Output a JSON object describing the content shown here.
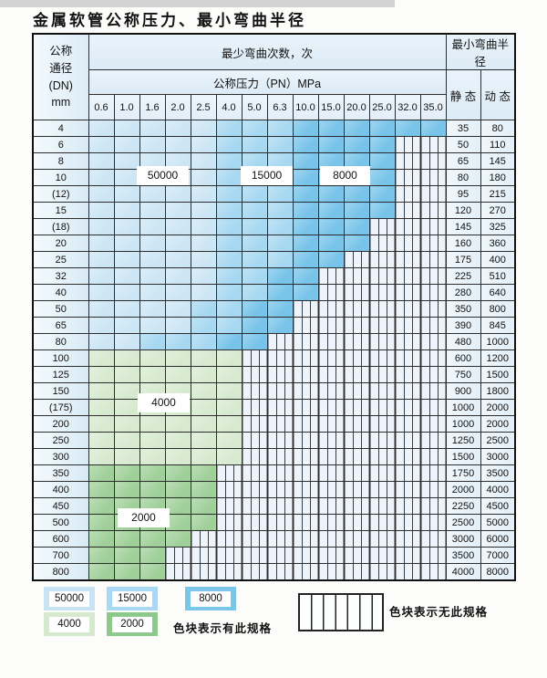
{
  "title": "金属软管公称压力、最小弯曲半径",
  "table": {
    "header": {
      "dn_lines": [
        "公称",
        "通径",
        "(DN)",
        "mm"
      ],
      "bend_times": "最少弯曲次数，次",
      "pressure": "公称压力（PN）MPa",
      "radius": "最小弯曲半径",
      "static": "静 态",
      "dynamic": "动 态",
      "pressures": [
        "0.6",
        "1.0",
        "1.6",
        "2.0",
        "2.5",
        "4.0",
        "5.0",
        "6.3",
        "10.0",
        "15.0",
        "20.0",
        "25.0",
        "32.0",
        "35.0"
      ]
    },
    "zones": {
      "L": {
        "category": "50000",
        "color": "#cde6f5"
      },
      "M": {
        "category": "15000",
        "color": "#a7d8f1"
      },
      "D": {
        "category": "8000",
        "color": "#77c3e9"
      },
      "G4": {
        "category": "4000",
        "color": "#d7ead0"
      },
      "G2": {
        "category": "2000",
        "color": "#a0d09a"
      },
      "N": {
        "category": "无此规格"
      }
    },
    "rows": [
      {
        "dn": "4",
        "cells": [
          "L",
          "L",
          "L",
          "L",
          "L",
          "M",
          "M",
          "M",
          "D",
          "D",
          "D",
          "D",
          "D",
          "D"
        ],
        "static": "35",
        "dynamic": "80"
      },
      {
        "dn": "6",
        "cells": [
          "L",
          "L",
          "L",
          "L",
          "L",
          "M",
          "M",
          "M",
          "D",
          "D",
          "D",
          "D",
          "N",
          "N"
        ],
        "static": "50",
        "dynamic": "110"
      },
      {
        "dn": "8",
        "cells": [
          "L",
          "L",
          "L",
          "L",
          "L",
          "M",
          "M",
          "M",
          "D",
          "D",
          "D",
          "D",
          "N",
          "N"
        ],
        "static": "65",
        "dynamic": "145"
      },
      {
        "dn": "10",
        "cells": [
          "L",
          "L",
          "L",
          "L",
          "L",
          "M",
          "M",
          "M",
          "D",
          "D",
          "D",
          "D",
          "N",
          "N"
        ],
        "static": "80",
        "dynamic": "180"
      },
      {
        "dn": "(12)",
        "cells": [
          "L",
          "L",
          "L",
          "L",
          "L",
          "M",
          "M",
          "M",
          "D",
          "D",
          "D",
          "D",
          "N",
          "N"
        ],
        "static": "95",
        "dynamic": "215"
      },
      {
        "dn": "15",
        "cells": [
          "L",
          "L",
          "L",
          "L",
          "L",
          "M",
          "M",
          "M",
          "D",
          "D",
          "D",
          "D",
          "N",
          "N"
        ],
        "static": "120",
        "dynamic": "270"
      },
      {
        "dn": "(18)",
        "cells": [
          "L",
          "L",
          "L",
          "L",
          "L",
          "M",
          "M",
          "M",
          "D",
          "D",
          "D",
          "N",
          "N",
          "N"
        ],
        "static": "145",
        "dynamic": "325"
      },
      {
        "dn": "20",
        "cells": [
          "L",
          "L",
          "L",
          "L",
          "L",
          "M",
          "M",
          "M",
          "D",
          "D",
          "D",
          "N",
          "N",
          "N"
        ],
        "static": "160",
        "dynamic": "360"
      },
      {
        "dn": "25",
        "cells": [
          "L",
          "L",
          "L",
          "L",
          "L",
          "M",
          "M",
          "M",
          "D",
          "D",
          "N",
          "N",
          "N",
          "N"
        ],
        "static": "175",
        "dynamic": "400"
      },
      {
        "dn": "32",
        "cells": [
          "L",
          "L",
          "L",
          "L",
          "L",
          "M",
          "M",
          "D",
          "D",
          "N",
          "N",
          "N",
          "N",
          "N"
        ],
        "static": "225",
        "dynamic": "510"
      },
      {
        "dn": "40",
        "cells": [
          "L",
          "L",
          "L",
          "L",
          "L",
          "M",
          "M",
          "D",
          "D",
          "N",
          "N",
          "N",
          "N",
          "N"
        ],
        "static": "280",
        "dynamic": "640"
      },
      {
        "dn": "50",
        "cells": [
          "L",
          "L",
          "L",
          "L",
          "M",
          "M",
          "D",
          "D",
          "N",
          "N",
          "N",
          "N",
          "N",
          "N"
        ],
        "static": "350",
        "dynamic": "800"
      },
      {
        "dn": "65",
        "cells": [
          "L",
          "L",
          "L",
          "L",
          "M",
          "M",
          "D",
          "D",
          "N",
          "N",
          "N",
          "N",
          "N",
          "N"
        ],
        "static": "390",
        "dynamic": "845"
      },
      {
        "dn": "80",
        "cells": [
          "L",
          "L",
          "M",
          "M",
          "M",
          "D",
          "D",
          "N",
          "N",
          "N",
          "N",
          "N",
          "N",
          "N"
        ],
        "static": "480",
        "dynamic": "1000"
      },
      {
        "dn": "100",
        "cells": [
          "G4",
          "G4",
          "G4",
          "G4",
          "G4",
          "G4",
          "N",
          "N",
          "N",
          "N",
          "N",
          "N",
          "N",
          "N"
        ],
        "static": "600",
        "dynamic": "1200"
      },
      {
        "dn": "125",
        "cells": [
          "G4",
          "G4",
          "G4",
          "G4",
          "G4",
          "G4",
          "N",
          "N",
          "N",
          "N",
          "N",
          "N",
          "N",
          "N"
        ],
        "static": "750",
        "dynamic": "1500"
      },
      {
        "dn": "150",
        "cells": [
          "G4",
          "G4",
          "G4",
          "G4",
          "G4",
          "G4",
          "N",
          "N",
          "N",
          "N",
          "N",
          "N",
          "N",
          "N"
        ],
        "static": "900",
        "dynamic": "1800"
      },
      {
        "dn": "(175)",
        "cells": [
          "G4",
          "G4",
          "G4",
          "G4",
          "G4",
          "G4",
          "N",
          "N",
          "N",
          "N",
          "N",
          "N",
          "N",
          "N"
        ],
        "static": "1000",
        "dynamic": "2000"
      },
      {
        "dn": "200",
        "cells": [
          "G4",
          "G4",
          "G4",
          "G4",
          "G4",
          "G4",
          "N",
          "N",
          "N",
          "N",
          "N",
          "N",
          "N",
          "N"
        ],
        "static": "1000",
        "dynamic": "2000"
      },
      {
        "dn": "250",
        "cells": [
          "G4",
          "G4",
          "G4",
          "G4",
          "G4",
          "G4",
          "N",
          "N",
          "N",
          "N",
          "N",
          "N",
          "N",
          "N"
        ],
        "static": "1250",
        "dynamic": "2500"
      },
      {
        "dn": "300",
        "cells": [
          "G4",
          "G4",
          "G4",
          "G4",
          "G4",
          "G4",
          "N",
          "N",
          "N",
          "N",
          "N",
          "N",
          "N",
          "N"
        ],
        "static": "1500",
        "dynamic": "3000"
      },
      {
        "dn": "350",
        "cells": [
          "G2",
          "G2",
          "G2",
          "G2",
          "G2",
          "N",
          "N",
          "N",
          "N",
          "N",
          "N",
          "N",
          "N",
          "N"
        ],
        "static": "1750",
        "dynamic": "3500"
      },
      {
        "dn": "400",
        "cells": [
          "G2",
          "G2",
          "G2",
          "G2",
          "G2",
          "N",
          "N",
          "N",
          "N",
          "N",
          "N",
          "N",
          "N",
          "N"
        ],
        "static": "2000",
        "dynamic": "4000"
      },
      {
        "dn": "450",
        "cells": [
          "G2",
          "G2",
          "G2",
          "G2",
          "G2",
          "N",
          "N",
          "N",
          "N",
          "N",
          "N",
          "N",
          "N",
          "N"
        ],
        "static": "2250",
        "dynamic": "4500"
      },
      {
        "dn": "500",
        "cells": [
          "G2",
          "G2",
          "G2",
          "G2",
          "G2",
          "N",
          "N",
          "N",
          "N",
          "N",
          "N",
          "N",
          "N",
          "N"
        ],
        "static": "2500",
        "dynamic": "5000"
      },
      {
        "dn": "600",
        "cells": [
          "G2",
          "G2",
          "G2",
          "G2",
          "N",
          "N",
          "N",
          "N",
          "N",
          "N",
          "N",
          "N",
          "N",
          "N"
        ],
        "static": "3000",
        "dynamic": "6000"
      },
      {
        "dn": "700",
        "cells": [
          "G2",
          "G2",
          "G2",
          "N",
          "N",
          "N",
          "N",
          "N",
          "N",
          "N",
          "N",
          "N",
          "N",
          "N"
        ],
        "static": "3500",
        "dynamic": "7000"
      },
      {
        "dn": "800",
        "cells": [
          "G2",
          "G2",
          "G2",
          "N",
          "N",
          "N",
          "N",
          "N",
          "N",
          "N",
          "N",
          "N",
          "N",
          "N"
        ],
        "static": "4000",
        "dynamic": "8000"
      }
    ],
    "overlay_labels": [
      "50000",
      "15000",
      "8000",
      "4000",
      "2000"
    ]
  },
  "legend": {
    "items": [
      {
        "label": "50000",
        "color": "#c7e3f4"
      },
      {
        "label": "15000",
        "color": "#a9d9f2"
      },
      {
        "label": "8000",
        "color": "#7cc5ea"
      },
      {
        "label": "4000",
        "color": "#d5e9cf"
      },
      {
        "label": "2000",
        "color": "#8cc98a"
      }
    ],
    "has_spec_text": "色块表示有此规格",
    "no_spec_text": "色块表示无此规格"
  }
}
